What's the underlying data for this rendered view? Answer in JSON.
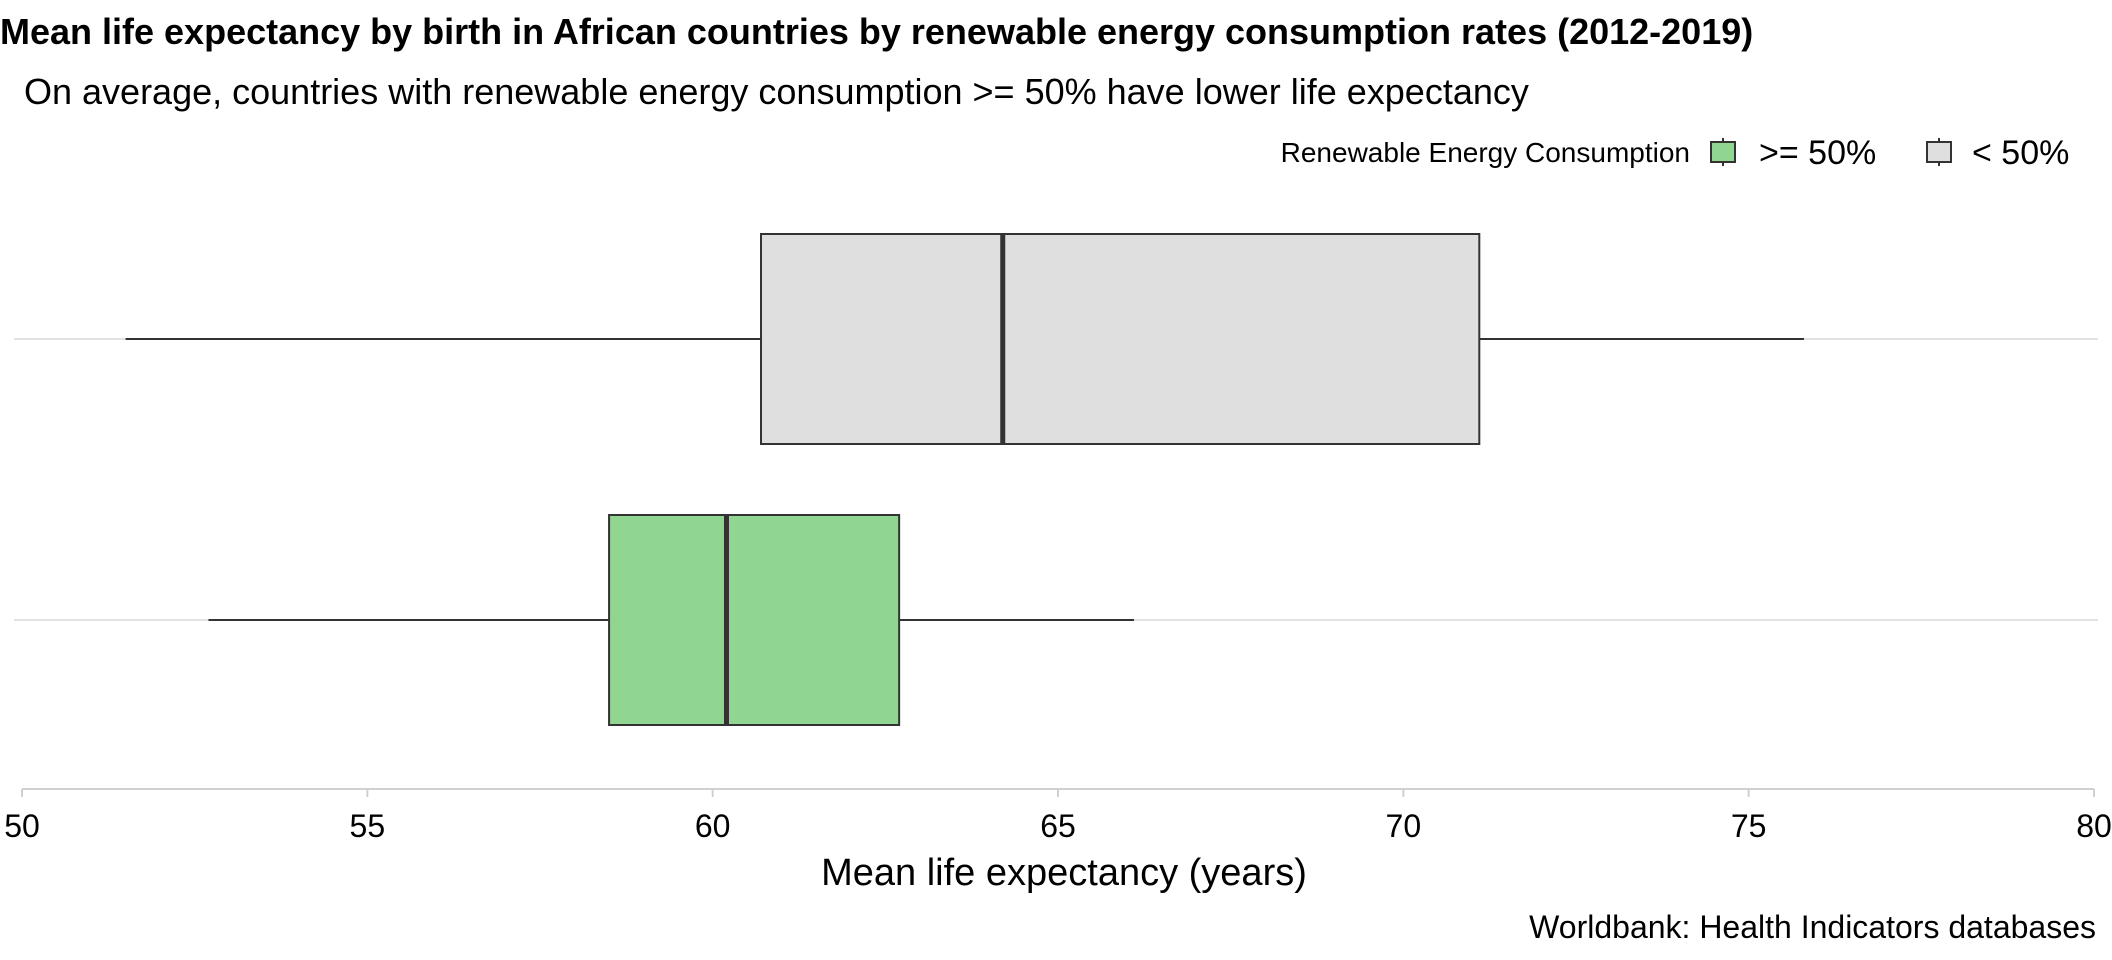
{
  "chart_data": {
    "type": "boxplot",
    "orientation": "horizontal",
    "title": "Mean life expectancy by birth in African countries by renewable energy consumption rates (2012-2019)",
    "subtitle": "On average, countries with renewable energy consumption >= 50% have lower life expectancy",
    "xlabel": "Mean life expectancy (years)",
    "ylabel": "",
    "caption": "Worldbank: Health Indicators databases",
    "xlim": [
      50,
      80
    ],
    "xticks": [
      "50",
      "55",
      "60",
      "65",
      "70",
      "75",
      "80"
    ],
    "xtick_values": [
      50,
      55,
      60,
      65,
      70,
      75,
      80
    ],
    "grid": "horizontal major lines only",
    "legend": {
      "title": "Renewable Energy Consumption",
      "position": "top-right",
      "entries": [
        {
          "label": ">= 50%",
          "color": "#90d690"
        },
        {
          "label": "< 50%",
          "color": "#dfdfdf"
        }
      ]
    },
    "series": [
      {
        "group": ">= 50%",
        "color": "#90d690",
        "min": 52.7,
        "q1": 58.5,
        "median": 60.2,
        "q3": 62.7,
        "max": 66.1
      },
      {
        "group": "< 50%",
        "color": "#dfdfdf",
        "min": 51.5,
        "q1": 60.7,
        "median": 64.2,
        "q3": 71.1,
        "max": 75.8
      }
    ]
  }
}
